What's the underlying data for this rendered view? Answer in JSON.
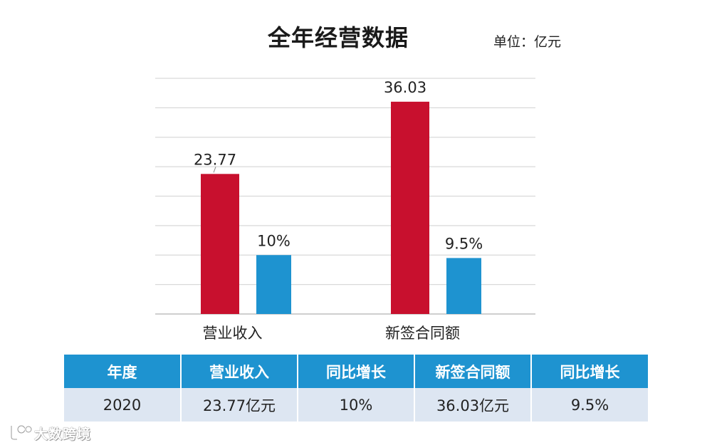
{
  "chart_data": {
    "type": "bar",
    "title": "全年经营数据",
    "unit_label": "单位：亿元",
    "categories": [
      "营业收入",
      "新签合同额"
    ],
    "series": [
      {
        "values": [
          23.77,
          36.03
        ],
        "labels": [
          "23.77",
          "36.03"
        ],
        "color": "#c8102e"
      },
      {
        "values": [
          10,
          9.5
        ],
        "labels": [
          "10%",
          "9.5%"
        ],
        "color": "#1e93d0"
      }
    ],
    "ylim": [
      0,
      40
    ],
    "grid": true,
    "legend": "none"
  },
  "table": {
    "headers": [
      "年度",
      "营业收入",
      "同比增长",
      "新签合同额",
      "同比增长"
    ],
    "rows": [
      [
        "2020",
        "23.77亿元",
        "10%",
        "36.03亿元",
        "9.5%"
      ]
    ],
    "header_color": "#1e93d0",
    "row_color": "#dde6f2"
  },
  "watermark": {
    "text": "大数跨境",
    "icon": "logo-mark-icon"
  }
}
